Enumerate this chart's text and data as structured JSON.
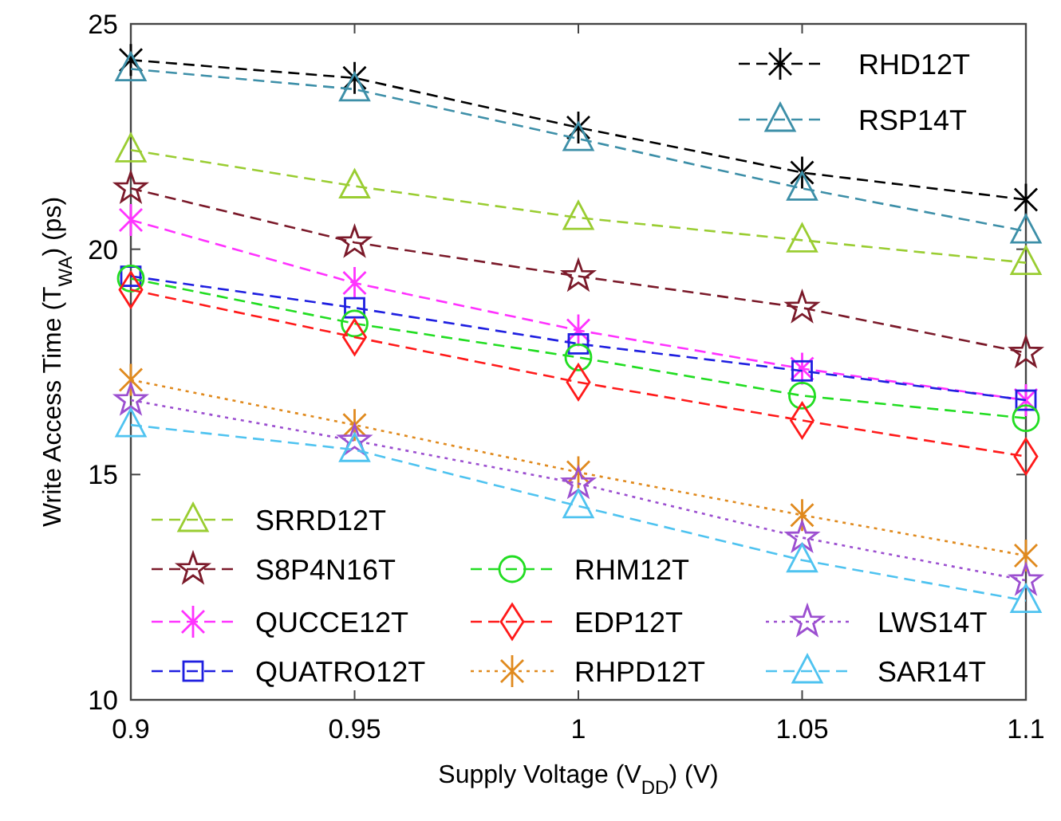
{
  "chart_data": {
    "type": "line",
    "xlabel": "Supply Voltage (V$_{DD}$) (V)",
    "ylabel": "Write Access Time (T$_{WA}$) (ps)",
    "x": [
      0.9,
      0.95,
      1,
      1.05,
      1.1
    ],
    "xlim": [
      0.9,
      1.1
    ],
    "xticks": [
      0.9,
      0.95,
      1,
      1.05,
      1.1
    ],
    "ylim": [
      10,
      25
    ],
    "yticks": [
      10,
      15,
      20,
      25
    ],
    "grid": false,
    "legend": "bottom left",
    "series": [
      {
        "name": "RHD12T",
        "color": "#000000",
        "marker": "cross",
        "line_style": "dashed",
        "values": [
          24.2,
          23.8,
          22.7,
          21.7,
          21.1
        ]
      },
      {
        "name": "RSP14T",
        "color": "#3d8fa8",
        "marker": "triangle",
        "line_style": "dashed",
        "values": [
          24.0,
          23.55,
          22.45,
          21.35,
          20.4
        ]
      },
      {
        "name": "SRRD12T",
        "color": "#9acd32",
        "marker": "triangle",
        "line_style": "dashed",
        "values": [
          22.2,
          21.4,
          20.7,
          20.2,
          19.7
        ]
      },
      {
        "name": "S8P4N16T",
        "color": "#7b1a2a",
        "marker": "star",
        "line_style": "dashed",
        "values": [
          21.35,
          20.15,
          19.4,
          18.7,
          17.7
        ]
      },
      {
        "name": "QUCCE12T",
        "color": "#ff33ff",
        "marker": "cross",
        "line_style": "dashed",
        "values": [
          20.65,
          19.25,
          18.2,
          17.35,
          16.65
        ]
      },
      {
        "name": "QUATRO12T",
        "color": "#1f1fe0",
        "marker": "square",
        "line_style": "dashed",
        "values": [
          19.4,
          18.7,
          17.9,
          17.3,
          16.65
        ]
      },
      {
        "name": "RHM12T",
        "color": "#22dd22",
        "marker": "circle",
        "line_style": "dashed",
        "values": [
          19.35,
          18.35,
          17.6,
          16.75,
          16.25
        ]
      },
      {
        "name": "EDP12T",
        "color": "#ff1a1a",
        "marker": "diamond",
        "line_style": "dashed",
        "values": [
          19.1,
          18.05,
          17.05,
          16.2,
          15.4
        ]
      },
      {
        "name": "RHPD12T",
        "color": "#e08a1e",
        "marker": "cross",
        "line_style": "dotted",
        "values": [
          17.1,
          16.1,
          15.05,
          14.1,
          13.2
        ]
      },
      {
        "name": "LWS14T",
        "color": "#9c4fd0",
        "marker": "star",
        "line_style": "dotted",
        "values": [
          16.65,
          15.75,
          14.8,
          13.6,
          12.65
        ]
      },
      {
        "name": "SAR14T",
        "color": "#4fc3f0",
        "marker": "triangle",
        "line_style": "dashed",
        "values": [
          16.1,
          15.55,
          14.3,
          13.1,
          12.2
        ]
      }
    ]
  }
}
